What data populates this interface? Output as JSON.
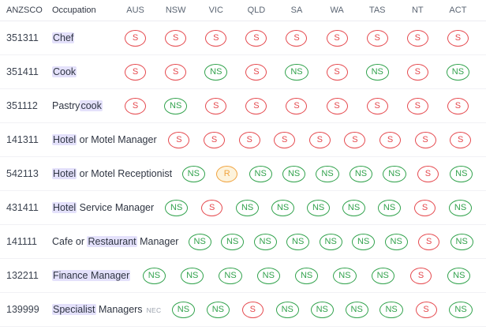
{
  "table": {
    "headers": {
      "anzsco": "ANZSCO",
      "occupation": "Occupation",
      "states": [
        "AUS",
        "NSW",
        "VIC",
        "QLD",
        "SA",
        "WA",
        "TAS",
        "NT",
        "ACT"
      ]
    },
    "badge_colors": {
      "red": "#e5484d",
      "green": "#31a24c",
      "orange": "#f0a33f",
      "orange_bg": "#fdf3dc"
    },
    "highlight_color": "#e4e1fb",
    "rows": [
      {
        "anzsco": "351311",
        "occupation": [
          {
            "text": "Chef",
            "highlight": true
          }
        ],
        "suffix": "",
        "badges": [
          {
            "label": "S",
            "color": "red"
          },
          {
            "label": "S",
            "color": "red"
          },
          {
            "label": "S",
            "color": "red"
          },
          {
            "label": "S",
            "color": "red"
          },
          {
            "label": "S",
            "color": "red"
          },
          {
            "label": "S",
            "color": "red"
          },
          {
            "label": "S",
            "color": "red"
          },
          {
            "label": "S",
            "color": "red"
          },
          {
            "label": "S",
            "color": "red"
          }
        ]
      },
      {
        "anzsco": "351411",
        "occupation": [
          {
            "text": "Cook",
            "highlight": true
          }
        ],
        "suffix": "",
        "badges": [
          {
            "label": "S",
            "color": "red"
          },
          {
            "label": "S",
            "color": "red"
          },
          {
            "label": "NS",
            "color": "green"
          },
          {
            "label": "S",
            "color": "red"
          },
          {
            "label": "NS",
            "color": "green"
          },
          {
            "label": "S",
            "color": "red"
          },
          {
            "label": "NS",
            "color": "green"
          },
          {
            "label": "S",
            "color": "red"
          },
          {
            "label": "NS",
            "color": "green"
          }
        ]
      },
      {
        "anzsco": "351112",
        "occupation": [
          {
            "text": "Pastry",
            "highlight": false
          },
          {
            "text": "cook",
            "highlight": true
          }
        ],
        "suffix": "",
        "badges": [
          {
            "label": "S",
            "color": "red"
          },
          {
            "label": "NS",
            "color": "green"
          },
          {
            "label": "S",
            "color": "red"
          },
          {
            "label": "S",
            "color": "red"
          },
          {
            "label": "S",
            "color": "red"
          },
          {
            "label": "S",
            "color": "red"
          },
          {
            "label": "S",
            "color": "red"
          },
          {
            "label": "S",
            "color": "red"
          },
          {
            "label": "S",
            "color": "red"
          }
        ]
      },
      {
        "anzsco": "141311",
        "occupation": [
          {
            "text": "Hotel",
            "highlight": true
          },
          {
            "text": " or Motel Manager",
            "highlight": false
          }
        ],
        "suffix": "",
        "badges": [
          {
            "label": "S",
            "color": "red"
          },
          {
            "label": "S",
            "color": "red"
          },
          {
            "label": "S",
            "color": "red"
          },
          {
            "label": "S",
            "color": "red"
          },
          {
            "label": "S",
            "color": "red"
          },
          {
            "label": "S",
            "color": "red"
          },
          {
            "label": "S",
            "color": "red"
          },
          {
            "label": "S",
            "color": "red"
          },
          {
            "label": "S",
            "color": "red"
          }
        ]
      },
      {
        "anzsco": "542113",
        "occupation": [
          {
            "text": "Hotel",
            "highlight": true
          },
          {
            "text": " or Motel Receptionist",
            "highlight": false
          }
        ],
        "suffix": "",
        "badges": [
          {
            "label": "NS",
            "color": "green"
          },
          {
            "label": "R",
            "color": "orange"
          },
          {
            "label": "NS",
            "color": "green"
          },
          {
            "label": "NS",
            "color": "green"
          },
          {
            "label": "NS",
            "color": "green"
          },
          {
            "label": "NS",
            "color": "green"
          },
          {
            "label": "NS",
            "color": "green"
          },
          {
            "label": "S",
            "color": "red"
          },
          {
            "label": "NS",
            "color": "green"
          }
        ]
      },
      {
        "anzsco": "431411",
        "occupation": [
          {
            "text": "Hotel",
            "highlight": true
          },
          {
            "text": " Service Manager",
            "highlight": false
          }
        ],
        "suffix": "",
        "badges": [
          {
            "label": "NS",
            "color": "green"
          },
          {
            "label": "S",
            "color": "red"
          },
          {
            "label": "NS",
            "color": "green"
          },
          {
            "label": "NS",
            "color": "green"
          },
          {
            "label": "NS",
            "color": "green"
          },
          {
            "label": "NS",
            "color": "green"
          },
          {
            "label": "NS",
            "color": "green"
          },
          {
            "label": "S",
            "color": "red"
          },
          {
            "label": "NS",
            "color": "green"
          }
        ]
      },
      {
        "anzsco": "141111",
        "occupation": [
          {
            "text": "Cafe or ",
            "highlight": false
          },
          {
            "text": "Restaurant",
            "highlight": true
          },
          {
            "text": " Manager",
            "highlight": false
          }
        ],
        "suffix": "",
        "badges": [
          {
            "label": "NS",
            "color": "green"
          },
          {
            "label": "NS",
            "color": "green"
          },
          {
            "label": "NS",
            "color": "green"
          },
          {
            "label": "NS",
            "color": "green"
          },
          {
            "label": "NS",
            "color": "green"
          },
          {
            "label": "NS",
            "color": "green"
          },
          {
            "label": "NS",
            "color": "green"
          },
          {
            "label": "S",
            "color": "red"
          },
          {
            "label": "NS",
            "color": "green"
          }
        ]
      },
      {
        "anzsco": "132211",
        "occupation": [
          {
            "text": "Finance Manager",
            "highlight": true
          }
        ],
        "suffix": "",
        "badges": [
          {
            "label": "NS",
            "color": "green"
          },
          {
            "label": "NS",
            "color": "green"
          },
          {
            "label": "NS",
            "color": "green"
          },
          {
            "label": "NS",
            "color": "green"
          },
          {
            "label": "NS",
            "color": "green"
          },
          {
            "label": "NS",
            "color": "green"
          },
          {
            "label": "NS",
            "color": "green"
          },
          {
            "label": "S",
            "color": "red"
          },
          {
            "label": "NS",
            "color": "green"
          }
        ]
      },
      {
        "anzsco": "139999",
        "occupation": [
          {
            "text": "Specialist",
            "highlight": true
          },
          {
            "text": " Managers",
            "highlight": false
          }
        ],
        "suffix": "NEC",
        "badges": [
          {
            "label": "NS",
            "color": "green"
          },
          {
            "label": "NS",
            "color": "green"
          },
          {
            "label": "S",
            "color": "red"
          },
          {
            "label": "NS",
            "color": "green"
          },
          {
            "label": "NS",
            "color": "green"
          },
          {
            "label": "NS",
            "color": "green"
          },
          {
            "label": "NS",
            "color": "green"
          },
          {
            "label": "S",
            "color": "red"
          },
          {
            "label": "NS",
            "color": "green"
          }
        ]
      }
    ]
  }
}
